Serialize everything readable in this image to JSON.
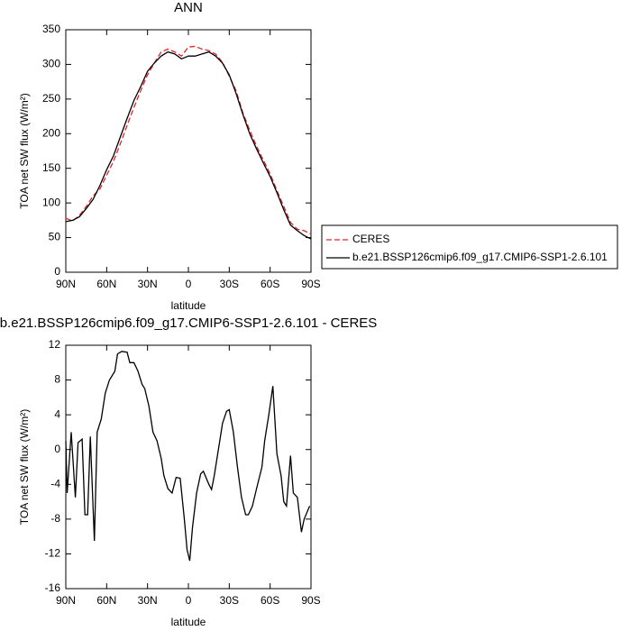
{
  "chart_data": [
    {
      "type": "line",
      "title": "ANN",
      "x_label": "latitude",
      "y_label": "TOA net SW flux (W/m²)",
      "x": [
        90,
        85,
        80,
        75,
        70,
        65,
        60,
        55,
        50,
        45,
        40,
        35,
        30,
        25,
        20,
        15,
        10,
        5,
        0,
        -5,
        -10,
        -15,
        -20,
        -25,
        -30,
        -35,
        -40,
        -45,
        -50,
        -55,
        -60,
        -65,
        -70,
        -75,
        -80,
        -85,
        -90
      ],
      "series": [
        {
          "name": "CERES",
          "color": "#e8202a",
          "dash": true,
          "values": [
            78,
            74,
            82,
            95,
            110,
            120,
            140,
            160,
            185,
            212,
            238,
            262,
            285,
            302,
            318,
            322,
            318,
            312,
            325,
            326,
            322,
            320,
            315,
            303,
            283,
            262,
            230,
            205,
            182,
            162,
            142,
            118,
            95,
            72,
            62,
            60,
            55
          ]
        },
        {
          "name": "b.e21.BSSP126cmip6.f09_g17.CMIP6-SSP1-2.6.101",
          "color": "#000000",
          "dash": false,
          "values": [
            73,
            75,
            80,
            92,
            105,
            125,
            148,
            168,
            195,
            222,
            248,
            268,
            290,
            302,
            312,
            318,
            315,
            308,
            312,
            312,
            315,
            318,
            312,
            302,
            285,
            258,
            228,
            200,
            178,
            158,
            138,
            115,
            90,
            68,
            60,
            53,
            48
          ]
        }
      ],
      "xlim": [
        90,
        -90
      ],
      "xticks": [
        {
          "value": 90,
          "label": "90N"
        },
        {
          "value": 60,
          "label": "60N"
        },
        {
          "value": 30,
          "label": "30N"
        },
        0,
        {
          "value": -30,
          "label": "30S"
        },
        {
          "value": -60,
          "label": "60S"
        },
        {
          "value": -90,
          "label": "90S"
        }
      ],
      "ylim": [
        0,
        350
      ],
      "yticks": [
        0,
        50,
        100,
        150,
        200,
        250,
        300,
        350
      ],
      "legend": "outside-right"
    },
    {
      "type": "line",
      "title": "b.e21.BSSP126cmip6.f09_g17.CMIP6-SSP1-2.6.101 - CERES",
      "x_label": "latitude",
      "y_label": "TOA net SW flux (W/m²)",
      "x": [
        90,
        89,
        86,
        83,
        81,
        78,
        76,
        74,
        72,
        69,
        67,
        64,
        61,
        58,
        54,
        52,
        49,
        45,
        43,
        40,
        37,
        34,
        32,
        29,
        26,
        23,
        20,
        18,
        15,
        12,
        9,
        6,
        3,
        1,
        -1,
        -3,
        -6,
        -9,
        -11,
        -15,
        -17,
        -19,
        -23,
        -25,
        -28,
        -30,
        -33,
        -36,
        -39,
        -42,
        -44,
        -47,
        -50,
        -54,
        -56,
        -59,
        -62,
        -65,
        -68,
        -70,
        -72,
        -75,
        -77,
        -80,
        -83,
        -85,
        -89
      ],
      "values": [
        1,
        -5,
        2,
        -5.5,
        0.8,
        1.2,
        -7.5,
        -7.5,
        1.5,
        -10.5,
        2,
        3.5,
        6.5,
        8,
        9,
        11,
        11.3,
        11.2,
        10,
        10,
        9,
        7.5,
        7,
        5,
        2,
        1,
        -1,
        -3,
        -4.5,
        -5,
        -3.2,
        -3.3,
        -8,
        -11.5,
        -12.8,
        -9,
        -5,
        -2.8,
        -2.5,
        -4,
        -4.6,
        -3,
        1,
        3,
        4.4,
        4.6,
        2,
        -2,
        -5.5,
        -7.5,
        -7.5,
        -6.5,
        -4.5,
        -2,
        1,
        4,
        7.3,
        -0.5,
        -3,
        -6,
        -6.5,
        -0.7,
        -5,
        -5.5,
        -9.5,
        -8,
        -6.5
      ],
      "color": "#000000",
      "xlim": [
        90,
        -90
      ],
      "xticks": [
        {
          "value": 90,
          "label": "90N"
        },
        {
          "value": 60,
          "label": "60N"
        },
        {
          "value": 30,
          "label": "30N"
        },
        0,
        {
          "value": -30,
          "label": "30S"
        },
        {
          "value": -60,
          "label": "60S"
        },
        {
          "value": -90,
          "label": "90S"
        }
      ],
      "ylim": [
        -16,
        12
      ],
      "yticks": [
        -16,
        -12,
        -8,
        -4,
        0,
        4,
        8,
        12
      ]
    }
  ]
}
